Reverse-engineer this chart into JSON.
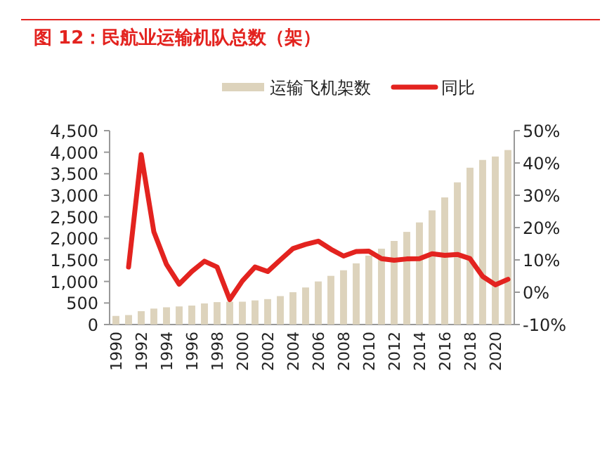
{
  "chart_data": {
    "type": "bar",
    "title": "图 12：民航业运输机队总数（架）",
    "categories": [
      "1990",
      null,
      "1992",
      null,
      "1994",
      null,
      "1996",
      null,
      "1998",
      null,
      "2000",
      null,
      "2002",
      null,
      "2004",
      null,
      "2006",
      null,
      "2008",
      null,
      "2010",
      null,
      "2012",
      null,
      "2014",
      null,
      "2016",
      null,
      "2018",
      null,
      "2020",
      null
    ],
    "series": [
      {
        "name": "运输飞机架数",
        "color": "#ddd3bc",
        "values": [
          200,
          220,
          310,
          370,
          400,
          420,
          440,
          490,
          520,
          530,
          530,
          560,
          590,
          660,
          750,
          860,
          1000,
          1130,
          1260,
          1420,
          1600,
          1760,
          1940,
          2150,
          2370,
          2650,
          2950,
          3300,
          3640,
          3820,
          3900,
          4050
        ]
      },
      {
        "name": "同比",
        "type": "line",
        "axis": "y2",
        "color": "#e3231f",
        "values": [
          null,
          7.8,
          42.6,
          18.7,
          8.6,
          2.5,
          6.4,
          9.6,
          7.8,
          -2.3,
          3.5,
          7.8,
          6.4,
          10,
          13.5,
          14.8,
          15.8,
          13.3,
          11.2,
          12.6,
          12.7,
          10.4,
          9.9,
          10.3,
          10.4,
          11.9,
          11.4,
          11.7,
          10.4,
          4.9,
          2.3,
          4.0
        ]
      }
    ],
    "ylim": [
      0,
      4500
    ],
    "yticks": [
      0,
      500,
      {
        "value": 1000,
        "label": "1,000"
      },
      {
        "value": 1500,
        "label": "1,500"
      },
      {
        "value": 2000,
        "label": "2,000"
      },
      {
        "value": 2500,
        "label": "2,500"
      },
      {
        "value": 3000,
        "label": "3,000"
      },
      {
        "value": 3500,
        "label": "3,500"
      },
      {
        "value": 4000,
        "label": "4,000"
      },
      {
        "value": 4500,
        "label": "4,500"
      }
    ],
    "y2lim": [
      -10,
      50
    ],
    "y2ticks": [
      {
        "value": -10,
        "label": "-10%"
      },
      {
        "value": 0,
        "label": "0%"
      },
      {
        "value": 10,
        "label": "10%"
      },
      {
        "value": 20,
        "label": "20%"
      },
      {
        "value": 30,
        "label": "30%"
      },
      {
        "value": 40,
        "label": "40%"
      },
      {
        "value": 50,
        "label": "50%"
      }
    ],
    "legend": "top",
    "grid": false
  }
}
